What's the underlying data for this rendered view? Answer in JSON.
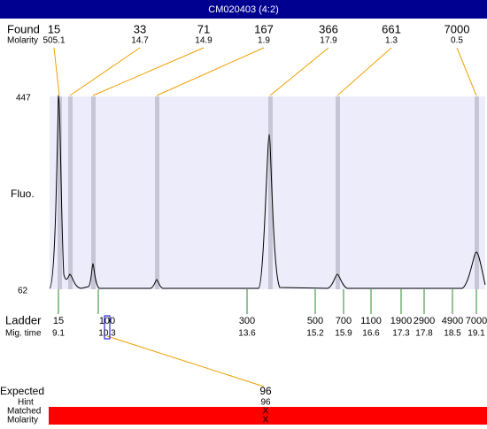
{
  "title": "CM020403 (4:2)",
  "found": {
    "label": "Found",
    "sizes": [
      15,
      33,
      71,
      167,
      366,
      661,
      7000
    ],
    "molarity_label": "Molarity",
    "molarities": [
      505.1,
      14.7,
      14.9,
      1.9,
      17.9,
      1.3,
      0.5
    ]
  },
  "axis": {
    "top": 447,
    "bottom": 62,
    "label": "Fluo."
  },
  "ladder": {
    "label": "Ladder",
    "sizes": [
      15,
      100,
      300,
      500,
      700,
      1100,
      1900,
      2900,
      4900,
      7000
    ],
    "mig_label": "Mig. time",
    "mig_times": [
      9.1,
      10.3,
      13.6,
      15.2,
      15.9,
      16.6,
      17.3,
      17.8,
      18.5,
      19.1
    ]
  },
  "expected": {
    "label": "Expected",
    "value": 96
  },
  "hint": {
    "label": "Hint",
    "value": 96
  },
  "matched": {
    "label": "Matched",
    "value": "X"
  },
  "molarity": {
    "label": "Molarity",
    "value": "X"
  }
}
